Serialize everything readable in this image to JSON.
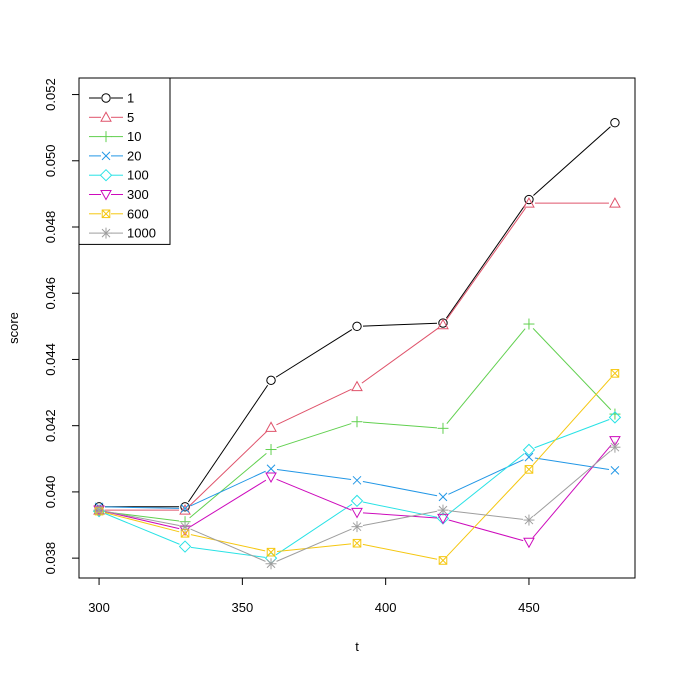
{
  "chart_data": {
    "type": "line",
    "title": "",
    "xlabel": "t",
    "ylabel": "score",
    "x": [
      300,
      330,
      360,
      390,
      420,
      450,
      480
    ],
    "xlim": [
      293,
      487
    ],
    "ylim": [
      0.0374,
      0.0525
    ],
    "x_ticks": [
      "300",
      "350",
      "400",
      "450"
    ],
    "x_tick_values": [
      300,
      350,
      400,
      450
    ],
    "y_ticks": [
      "0.038",
      "0.040",
      "0.042",
      "0.044",
      "0.046",
      "0.048",
      "0.050",
      "0.052"
    ],
    "y_tick_values": [
      0.038,
      0.04,
      0.042,
      0.044,
      0.046,
      0.048,
      0.05,
      0.052
    ],
    "grid": false,
    "legend_position": "top-left",
    "series": [
      {
        "name": "1",
        "color": "#000000",
        "marker": "circle",
        "values": [
          0.03955,
          0.03955,
          0.04337,
          0.045,
          0.0451,
          0.04883,
          0.05115
        ]
      },
      {
        "name": "5",
        "color": "#DF536B",
        "marker": "triangle-up",
        "values": [
          0.03945,
          0.03945,
          0.04195,
          0.04318,
          0.04505,
          0.04872,
          0.04872
        ]
      },
      {
        "name": "10",
        "color": "#61D04F",
        "marker": "plus",
        "values": [
          0.03942,
          0.0391,
          0.04128,
          0.04212,
          0.04192,
          0.04507,
          0.04235
        ]
      },
      {
        "name": "20",
        "color": "#2297E6",
        "marker": "cross",
        "values": [
          0.03955,
          0.0395,
          0.0407,
          0.04035,
          0.03985,
          0.04105,
          0.04065
        ]
      },
      {
        "name": "100",
        "color": "#28E2E5",
        "marker": "diamond",
        "values": [
          0.03942,
          0.03835,
          0.038,
          0.03973,
          0.0392,
          0.04127,
          0.04225
        ]
      },
      {
        "name": "300",
        "color": "#CD0BBC",
        "marker": "triangle-down",
        "values": [
          0.03945,
          0.03885,
          0.04045,
          0.03938,
          0.0392,
          0.03848,
          0.04155
        ]
      },
      {
        "name": "600",
        "color": "#F5C710",
        "marker": "square-x",
        "values": [
          0.03942,
          0.03875,
          0.03818,
          0.03845,
          0.03793,
          0.04068,
          0.04358
        ]
      },
      {
        "name": "1000",
        "color": "#9E9E9E",
        "marker": "asterisk",
        "values": [
          0.03945,
          0.03895,
          0.03783,
          0.03895,
          0.03945,
          0.03915,
          0.04135
        ]
      }
    ]
  }
}
